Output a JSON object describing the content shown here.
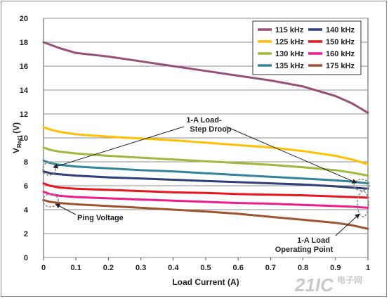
{
  "chart_data": {
    "type": "line",
    "xlabel": "Load Current (A)",
    "ylabel_main": "V",
    "ylabel_sub": "Rect",
    "ylabel_unit": "(V)",
    "xlim": [
      0,
      1
    ],
    "ylim": [
      0,
      20
    ],
    "x_ticks": [
      "0",
      "0.1",
      "0.2",
      "0.3",
      "0.4",
      "0.5",
      "0.6",
      "0.7",
      "0.8",
      "0.9",
      "1"
    ],
    "y_ticks": [
      "0",
      "2",
      "4",
      "6",
      "8",
      "10",
      "12",
      "14",
      "16",
      "18",
      "20"
    ],
    "grid": "horizontal",
    "legend_position": "top-right",
    "x": [
      0,
      0.02,
      0.05,
      0.1,
      0.2,
      0.3,
      0.4,
      0.5,
      0.6,
      0.7,
      0.8,
      0.9,
      0.95,
      1.0
    ],
    "series": [
      {
        "name": "115 kHz",
        "color": "#9a4f7a",
        "values": [
          18.0,
          17.8,
          17.5,
          17.1,
          16.8,
          16.4,
          16.0,
          15.6,
          15.2,
          14.8,
          14.3,
          13.5,
          12.9,
          12.1
        ]
      },
      {
        "name": "125 kHz",
        "color": "#ffc000",
        "values": [
          10.9,
          10.7,
          10.5,
          10.3,
          10.1,
          9.95,
          9.8,
          9.6,
          9.4,
          9.2,
          8.9,
          8.5,
          8.2,
          7.8
        ]
      },
      {
        "name": "130 kHz",
        "color": "#9bbb3c",
        "values": [
          9.2,
          9.0,
          8.85,
          8.7,
          8.5,
          8.35,
          8.2,
          8.05,
          7.9,
          7.75,
          7.55,
          7.3,
          7.1,
          6.85
        ]
      },
      {
        "name": "135 kHz",
        "color": "#31849b",
        "values": [
          8.1,
          7.9,
          7.75,
          7.6,
          7.45,
          7.3,
          7.2,
          7.05,
          6.9,
          6.75,
          6.6,
          6.45,
          6.35,
          6.2
        ]
      },
      {
        "name": "140 kHz",
        "color": "#2e3f7a",
        "values": [
          7.2,
          7.05,
          6.95,
          6.85,
          6.7,
          6.6,
          6.5,
          6.4,
          6.3,
          6.2,
          6.1,
          5.95,
          5.85,
          5.75
        ]
      },
      {
        "name": "150 kHz",
        "color": "#e8151b",
        "values": [
          6.2,
          6.0,
          5.85,
          5.75,
          5.65,
          5.55,
          5.45,
          5.4,
          5.3,
          5.25,
          5.2,
          5.1,
          5.05,
          5.0
        ]
      },
      {
        "name": "160 kHz",
        "color": "#ee1c8c",
        "values": [
          5.5,
          5.3,
          5.15,
          5.05,
          4.95,
          4.85,
          4.75,
          4.65,
          4.55,
          4.5,
          4.4,
          4.3,
          4.25,
          4.15
        ]
      },
      {
        "name": "175 kHz",
        "color": "#a0522d",
        "values": [
          4.8,
          4.65,
          4.55,
          4.45,
          4.3,
          4.15,
          4.0,
          3.85,
          3.65,
          3.4,
          3.15,
          2.9,
          2.7,
          2.4
        ]
      }
    ],
    "annotations": [
      {
        "id": "droop",
        "lines": [
          "1-A Load-",
          "Step Droop"
        ]
      },
      {
        "id": "ping",
        "lines": [
          "Ping Voltage"
        ]
      },
      {
        "id": "operating",
        "lines": [
          "1-A Load",
          "Operating Point"
        ]
      }
    ]
  },
  "watermark": {
    "text": "21IC",
    "subtext": "电子网"
  }
}
